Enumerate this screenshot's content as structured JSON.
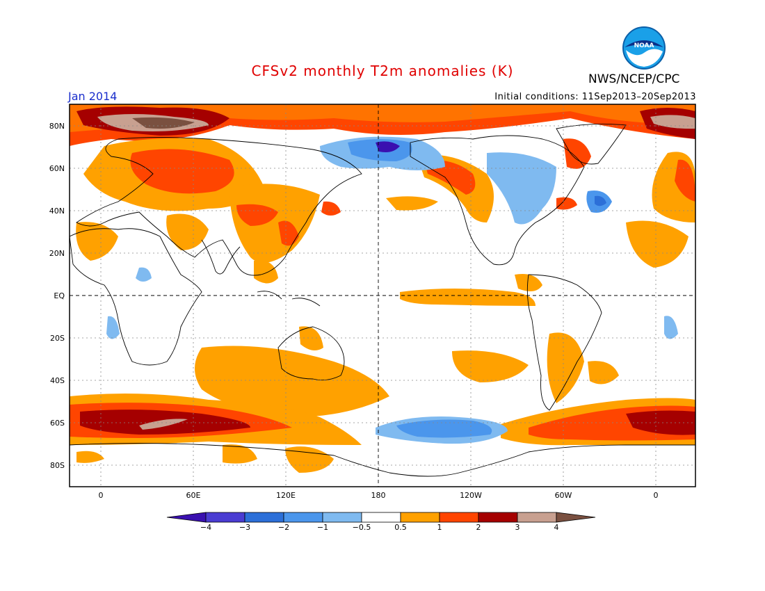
{
  "header": {
    "title": "CFSv2 monthly T2m anomalies (K)",
    "period": "Jan 2014",
    "initial_conditions": "Initial conditions: 11Sep2013–20Sep2013",
    "agency": "NWS/NCEP/CPC",
    "logo_text": "NOAA"
  },
  "map": {
    "lat_labels": [
      "80N",
      "60N",
      "40N",
      "20N",
      "EQ",
      "20S",
      "40S",
      "60S",
      "80S"
    ],
    "lon_labels": [
      "0",
      "60E",
      "120E",
      "180",
      "120W",
      "60W",
      "0"
    ]
  },
  "colorbar": {
    "labels": [
      "−4",
      "−3",
      "−2",
      "−1",
      "−0.5",
      "0.5",
      "1",
      "2",
      "3",
      "4"
    ],
    "colors": [
      "#3a10b0",
      "#4a3cd2",
      "#2c6fd8",
      "#4b96ec",
      "#7fbaf0",
      "#ffffff",
      "#ffa100",
      "#ff4500",
      "#a50000",
      "#c8a090",
      "#7a5040"
    ]
  }
}
